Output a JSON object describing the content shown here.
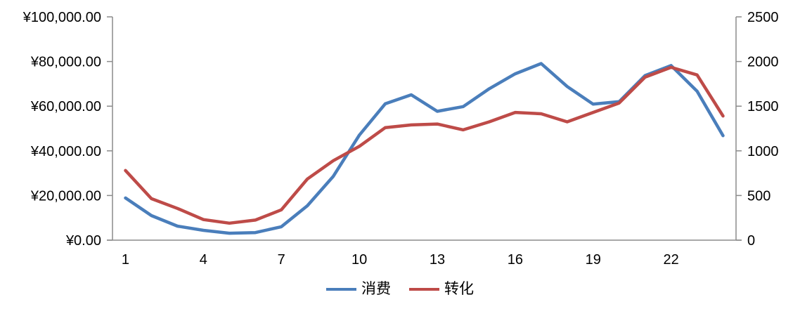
{
  "chart_data": {
    "type": "line",
    "title": "",
    "x": [
      1,
      2,
      3,
      4,
      5,
      6,
      7,
      8,
      9,
      10,
      11,
      12,
      13,
      14,
      15,
      16,
      17,
      18,
      19,
      20,
      21,
      22,
      23,
      24
    ],
    "x_tick_labels": [
      "1",
      "4",
      "7",
      "10",
      "13",
      "16",
      "19",
      "22"
    ],
    "series": [
      {
        "name": "消费",
        "axis": "left",
        "color": "#4A7EBB",
        "values": [
          18900,
          11000,
          6300,
          4400,
          3100,
          3400,
          6000,
          15400,
          28600,
          47000,
          61100,
          65100,
          57700,
          59800,
          67800,
          74500,
          79100,
          68800,
          60900,
          62000,
          73700,
          78200,
          66700,
          46800
        ]
      },
      {
        "name": "转化",
        "axis": "right",
        "color": "#BE4B48",
        "values": [
          780,
          465,
          355,
          230,
          190,
          225,
          340,
          685,
          890,
          1050,
          1260,
          1290,
          1300,
          1235,
          1325,
          1430,
          1415,
          1325,
          1430,
          1535,
          1825,
          1935,
          1850,
          1390
        ]
      }
    ],
    "left_axis": {
      "min": 0,
      "max": 100000,
      "step": 20000,
      "tick_labels": [
        "¥0.00",
        "¥20,000.00",
        "¥40,000.00",
        "¥60,000.00",
        "¥80,000.00",
        "¥100,000.00"
      ]
    },
    "right_axis": {
      "min": 0,
      "max": 2500,
      "step": 500,
      "tick_labels": [
        "0",
        "500",
        "1000",
        "1500",
        "2000",
        "2500"
      ]
    },
    "legend_position": "bottom",
    "grid": false
  },
  "colors": {
    "axis_line": "#8B8B8B",
    "tick_text": "#000000",
    "background": "#ffffff"
  }
}
